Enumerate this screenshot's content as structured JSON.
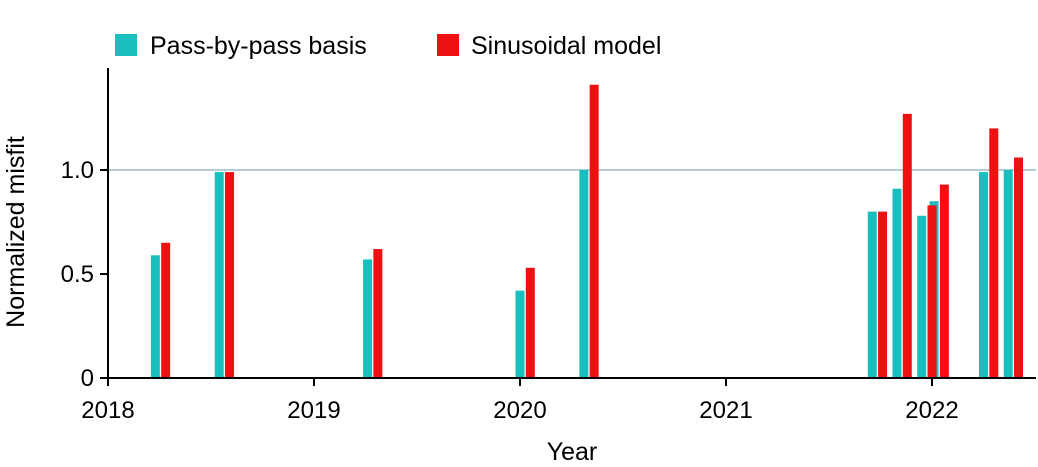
{
  "chart_data": {
    "type": "bar",
    "xlabel": "Year",
    "ylabel": "Normalized misfit",
    "xlim": [
      2018.0,
      2022.5
    ],
    "ylim": [
      0,
      1.5
    ],
    "x_ticks": [
      2018,
      2019,
      2020,
      2021,
      2022
    ],
    "x_tick_labels": [
      "2018",
      "2019",
      "2020",
      "2021",
      "2022"
    ],
    "y_ticks": [
      0,
      0.5,
      1.0
    ],
    "y_tick_labels": [
      "0",
      "0.5",
      "1.0"
    ],
    "reference_line": 1.0,
    "legend_placement": "top-left",
    "series": [
      {
        "name": "Pass-by-pass basis",
        "color": "#19bfbf",
        "x": [
          2018.23,
          2018.54,
          2019.26,
          2020.0,
          2020.31,
          2021.71,
          2021.83,
          2021.95,
          2022.01,
          2022.25,
          2022.37
        ],
        "values": [
          0.59,
          0.99,
          0.57,
          0.42,
          1.0,
          0.8,
          0.91,
          0.78,
          0.85,
          0.99,
          1.0
        ]
      },
      {
        "name": "Sinusoidal model",
        "color": "#ee1111",
        "x": [
          2018.28,
          2018.59,
          2019.31,
          2020.05,
          2020.36,
          2021.76,
          2021.88,
          2022.0,
          2022.06,
          2022.3,
          2022.42
        ],
        "values": [
          0.65,
          0.99,
          0.62,
          0.53,
          1.41,
          0.8,
          1.27,
          0.83,
          0.93,
          1.2,
          1.06
        ]
      }
    ]
  }
}
